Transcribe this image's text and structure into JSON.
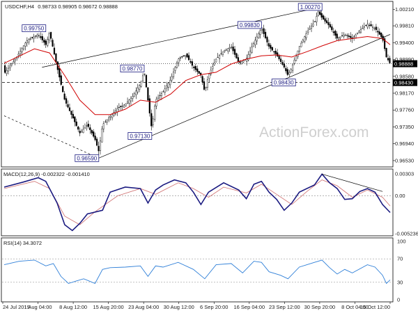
{
  "header": {
    "symbol": "USDCHF,H4",
    "ohlc": "0.98733 0.98905 0.98672 0.98888",
    "macd": "MACD(12,26,9) -0.002322 -0.001410",
    "rsi": "RSI(14) 34.3072"
  },
  "watermark": "ActionForex.com",
  "current_price_label": "0.98888",
  "support_label": "0.98430",
  "chart_data": [
    {
      "type": "candlestick",
      "instrument": "USDCHF",
      "timeframe": "H4",
      "price_axis": {
        "ticks": [
          "1.00210",
          "0.99810",
          "0.99400",
          "0.98990",
          "0.98580",
          "0.98170",
          "0.97760",
          "0.97350",
          "0.96940",
          "0.96530"
        ],
        "ylim": [
          0.9641,
          1.0037
        ]
      },
      "x_ticks": [
        "24 Jul 2019",
        "1 Aug 04:00",
        "8 Aug 12:00",
        "15 Aug 20:00",
        "23 Aug 04:00",
        "30 Aug 12:00",
        "6 Sep 20:00",
        "16 Sep 04:00",
        "23 Sep 12:00",
        "30 Sep 20:00",
        "8 Oct 04:00",
        "15 Oct 12:00"
      ],
      "close_path": [
        [
          0,
          0.9865
        ],
        [
          3,
          0.99
        ],
        [
          6,
          0.9945
        ],
        [
          9,
          0.996
        ],
        [
          11,
          0.9935
        ],
        [
          12,
          0.9965
        ],
        [
          14,
          0.988
        ],
        [
          16,
          0.98
        ],
        [
          18,
          0.976
        ],
        [
          20,
          0.972
        ],
        [
          22,
          0.974
        ],
        [
          24,
          0.9705
        ],
        [
          25,
          0.9675
        ],
        [
          26,
          0.974
        ],
        [
          28,
          0.976
        ],
        [
          30,
          0.978
        ],
        [
          32,
          0.979
        ],
        [
          34,
          0.981
        ],
        [
          36,
          0.984
        ],
        [
          37,
          0.987
        ],
        [
          38,
          0.98
        ],
        [
          39,
          0.973
        ],
        [
          40,
          0.98
        ],
        [
          42,
          0.982
        ],
        [
          44,
          0.985
        ],
        [
          46,
          0.99
        ],
        [
          48,
          0.991
        ],
        [
          50,
          0.988
        ],
        [
          52,
          0.986
        ],
        [
          53,
          0.982
        ],
        [
          54,
          0.986
        ],
        [
          56,
          0.99
        ],
        [
          58,
          0.992
        ],
        [
          60,
          0.993
        ],
        [
          62,
          0.989
        ],
        [
          64,
          0.99
        ],
        [
          66,
          0.994
        ],
        [
          68,
          0.9975
        ],
        [
          70,
          0.993
        ],
        [
          72,
          0.991
        ],
        [
          74,
          0.988
        ],
        [
          75,
          0.986
        ],
        [
          76,
          0.988
        ],
        [
          78,
          0.993
        ],
        [
          80,
          0.9965
        ],
        [
          82,
          0.999
        ],
        [
          83,
          1.0015
        ],
        [
          84,
          1.0
        ],
        [
          86,
          0.998
        ],
        [
          88,
          0.995
        ],
        [
          90,
          0.996
        ],
        [
          92,
          0.995
        ],
        [
          94,
          0.997
        ],
        [
          96,
          0.9985
        ],
        [
          98,
          0.9975
        ],
        [
          100,
          0.995
        ],
        [
          101,
          0.9905
        ],
        [
          102,
          0.9889
        ]
      ],
      "ma_path": [
        [
          0,
          0.989
        ],
        [
          8,
          0.9925
        ],
        [
          12,
          0.9915
        ],
        [
          16,
          0.986
        ],
        [
          20,
          0.98
        ],
        [
          24,
          0.9765
        ],
        [
          28,
          0.9765
        ],
        [
          32,
          0.9778
        ],
        [
          36,
          0.98
        ],
        [
          40,
          0.9795
        ],
        [
          44,
          0.9815
        ],
        [
          48,
          0.9848
        ],
        [
          52,
          0.9862
        ],
        [
          56,
          0.9868
        ],
        [
          60,
          0.9888
        ],
        [
          64,
          0.99
        ],
        [
          68,
          0.9908
        ],
        [
          72,
          0.991
        ],
        [
          76,
          0.9905
        ],
        [
          80,
          0.9918
        ],
        [
          84,
          0.9932
        ],
        [
          88,
          0.9945
        ],
        [
          92,
          0.995
        ],
        [
          96,
          0.9955
        ],
        [
          100,
          0.995
        ],
        [
          102,
          0.9935
        ]
      ],
      "channel": [
        {
          "from": [
            25,
            0.9659
          ],
          "to": [
            102,
            0.996
          ],
          "style": "solid"
        },
        {
          "from": [
            10,
            0.988
          ],
          "to": [
            84,
            1.0027
          ],
          "style": "solid"
        }
      ],
      "dashed_lines": [
        {
          "from": [
            0,
            0.9762
          ],
          "to": [
            25,
            0.9659
          ]
        }
      ],
      "level_labels": [
        {
          "label": "0.99750",
          "x": 11,
          "y": 0.9975,
          "side": "left"
        },
        {
          "label": "0.96590",
          "x": 25,
          "y": 0.9659,
          "side": "left"
        },
        {
          "label": "0.98770",
          "x": 37,
          "y": 0.9877,
          "side": "left"
        },
        {
          "label": "0.97130",
          "x": 39,
          "y": 0.9713,
          "side": "left"
        },
        {
          "label": "0.98430",
          "x": 77,
          "y": 0.9843,
          "side": "left"
        },
        {
          "label": "0.99830",
          "x": 68,
          "y": 0.9983,
          "side": "left"
        },
        {
          "label": "1.00270",
          "x": 84,
          "y": 1.0027,
          "side": "left"
        }
      ],
      "horizontal_levels": [
        {
          "y": 0.9843,
          "style": "dashed"
        },
        {
          "y": 0.98888,
          "style": "dotted"
        }
      ]
    },
    {
      "type": "line",
      "name": "MACD(12,26,9)",
      "values": [
        "-0.002322",
        "-0.001410"
      ],
      "y_ticks": [
        "0.00303",
        "0.00",
        "-0.005236"
      ],
      "ylim": [
        -0.005236,
        0.00303
      ],
      "macd_path": [
        [
          0,
          0.0012
        ],
        [
          5,
          0.0019
        ],
        [
          9,
          0.0025
        ],
        [
          11,
          0.002
        ],
        [
          14,
          -0.001
        ],
        [
          16,
          -0.004
        ],
        [
          18,
          -0.0048
        ],
        [
          20,
          -0.0038
        ],
        [
          22,
          -0.0025
        ],
        [
          26,
          -0.002
        ],
        [
          28,
          0.0005
        ],
        [
          32,
          0.0012
        ],
        [
          36,
          0.001
        ],
        [
          38,
          -0.001
        ],
        [
          40,
          0.0008
        ],
        [
          42,
          0.0015
        ],
        [
          45,
          0.0022
        ],
        [
          48,
          0.0018
        ],
        [
          50,
          0.0005
        ],
        [
          52,
          -0.0012
        ],
        [
          54,
          0.0005
        ],
        [
          58,
          0.0018
        ],
        [
          62,
          0.0008
        ],
        [
          64,
          -0.0004
        ],
        [
          66,
          0.0016
        ],
        [
          68,
          0.002
        ],
        [
          70,
          0.0005
        ],
        [
          72,
          -0.0005
        ],
        [
          74,
          -0.002
        ],
        [
          76,
          -0.001
        ],
        [
          78,
          0.0005
        ],
        [
          82,
          0.0015
        ],
        [
          84,
          0.003
        ],
        [
          86,
          0.0018
        ],
        [
          88,
          0.001
        ],
        [
          90,
          -0.0005
        ],
        [
          92,
          -0.0004
        ],
        [
          94,
          0.0006
        ],
        [
          96,
          0.001
        ],
        [
          98,
          0.0005
        ],
        [
          100,
          -0.0012
        ],
        [
          102,
          -0.0023
        ]
      ],
      "signal_path": [
        [
          0,
          0.001
        ],
        [
          8,
          0.002
        ],
        [
          12,
          0.001
        ],
        [
          16,
          -0.0028
        ],
        [
          20,
          -0.004
        ],
        [
          24,
          -0.0022
        ],
        [
          30,
          0.0
        ],
        [
          36,
          0.001
        ],
        [
          40,
          0.0002
        ],
        [
          46,
          0.0018
        ],
        [
          50,
          0.001
        ],
        [
          54,
          -0.0002
        ],
        [
          58,
          0.0012
        ],
        [
          64,
          0.0004
        ],
        [
          68,
          0.0016
        ],
        [
          72,
          0.0002
        ],
        [
          76,
          -0.0012
        ],
        [
          80,
          0.0006
        ],
        [
          84,
          0.0022
        ],
        [
          88,
          0.0014
        ],
        [
          92,
          -0.0002
        ],
        [
          96,
          0.0008
        ],
        [
          100,
          -0.0002
        ],
        [
          102,
          -0.0014
        ]
      ],
      "trendline": {
        "from": [
          84,
          0.003
        ],
        "to": [
          100,
          0.0006
        ]
      }
    },
    {
      "type": "line",
      "name": "RSI(14)",
      "value": "34.3072",
      "y_ticks": [
        "100",
        "70",
        "30",
        "0"
      ],
      "ylim": [
        0,
        100
      ],
      "rsi_path": [
        [
          0,
          60
        ],
        [
          4,
          66
        ],
        [
          8,
          68
        ],
        [
          11,
          58
        ],
        [
          13,
          62
        ],
        [
          15,
          40
        ],
        [
          17,
          28
        ],
        [
          19,
          32
        ],
        [
          21,
          36
        ],
        [
          24,
          28
        ],
        [
          26,
          52
        ],
        [
          28,
          55
        ],
        [
          32,
          56
        ],
        [
          36,
          58
        ],
        [
          38,
          40
        ],
        [
          40,
          58
        ],
        [
          42,
          56
        ],
        [
          46,
          64
        ],
        [
          50,
          52
        ],
        [
          53,
          36
        ],
        [
          56,
          60
        ],
        [
          60,
          62
        ],
        [
          63,
          46
        ],
        [
          66,
          66
        ],
        [
          68,
          64
        ],
        [
          70,
          48
        ],
        [
          73,
          42
        ],
        [
          75,
          36
        ],
        [
          78,
          56
        ],
        [
          82,
          64
        ],
        [
          84,
          68
        ],
        [
          86,
          55
        ],
        [
          88,
          44
        ],
        [
          90,
          52
        ],
        [
          92,
          46
        ],
        [
          96,
          60
        ],
        [
          98,
          56
        ],
        [
          100,
          42
        ],
        [
          101,
          28
        ],
        [
          102,
          34
        ]
      ]
    }
  ]
}
